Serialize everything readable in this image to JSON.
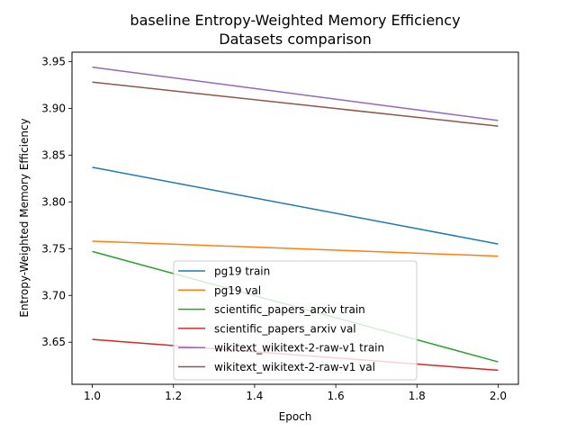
{
  "chart_data": {
    "type": "line",
    "title": "baseline Entropy-Weighted Memory Efficiency",
    "subtitle": "Datasets comparison",
    "xlabel": "Epoch",
    "ylabel": "Entropy-Weighted Memory Efficiency",
    "xlim": [
      0.95,
      2.05
    ],
    "ylim": [
      3.605,
      3.96
    ],
    "xticks": [
      1.0,
      1.2,
      1.4,
      1.6,
      1.8,
      2.0
    ],
    "xtick_labels": [
      "1.0",
      "1.2",
      "1.4",
      "1.6",
      "1.8",
      "2.0"
    ],
    "yticks": [
      3.65,
      3.7,
      3.75,
      3.8,
      3.85,
      3.9,
      3.95
    ],
    "ytick_labels": [
      "3.65",
      "3.70",
      "3.75",
      "3.80",
      "3.85",
      "3.90",
      "3.95"
    ],
    "grid": false,
    "legend_position": "lower-center",
    "x": [
      1.0,
      2.0
    ],
    "series": [
      {
        "name": "pg19 train",
        "color": "#1f77b4",
        "values": [
          3.837,
          3.755
        ]
      },
      {
        "name": "pg19 val",
        "color": "#ff7f0e",
        "values": [
          3.758,
          3.742
        ]
      },
      {
        "name": "scientific_papers_arxiv train",
        "color": "#2ca02c",
        "values": [
          3.747,
          3.629
        ]
      },
      {
        "name": "scientific_papers_arxiv val",
        "color": "#d62728",
        "values": [
          3.653,
          3.62
        ]
      },
      {
        "name": "wikitext_wikitext-2-raw-v1 train",
        "color": "#9467bd",
        "values": [
          3.944,
          3.887
        ]
      },
      {
        "name": "wikitext_wikitext-2-raw-v1 val",
        "color": "#8c564b",
        "values": [
          3.928,
          3.881
        ]
      }
    ]
  }
}
